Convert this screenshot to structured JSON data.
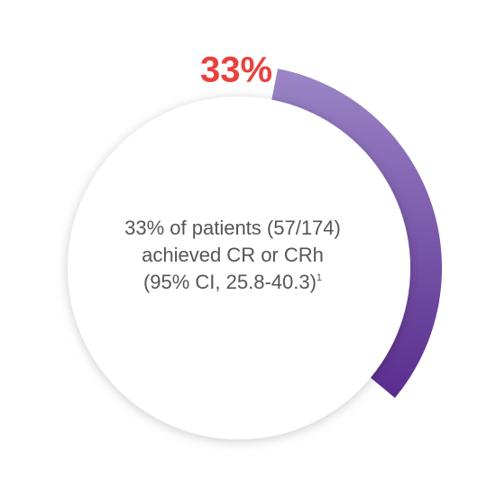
{
  "chart_data": {
    "type": "progress-ring",
    "values": [
      33
    ],
    "value_labels": [
      "33%"
    ],
    "max": 100,
    "colors": [
      "#9b86c6",
      "#5a2c8e"
    ],
    "label_color": "#e8423f",
    "caption": [
      "33% of patients (57/174)",
      "achieved CR or CRh",
      "(95% CI, 25.8-40.3)"
    ],
    "footnote": "1"
  }
}
